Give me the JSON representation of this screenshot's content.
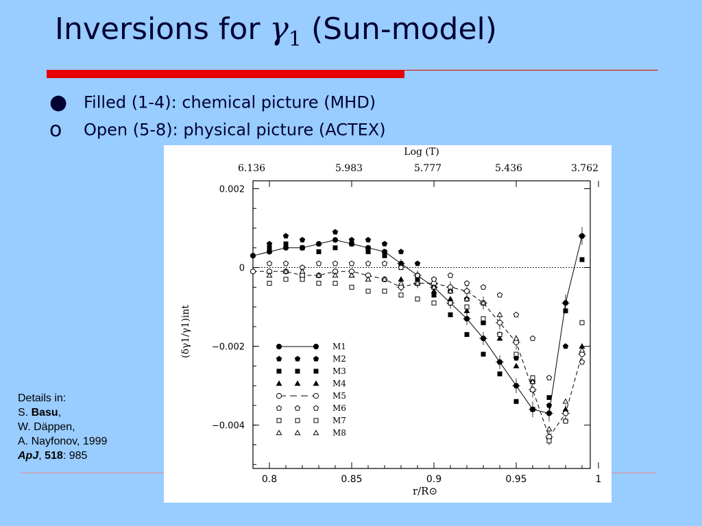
{
  "slide": {
    "title_prefix": "Inversions for ",
    "title_symbol": "γ",
    "title_subscript": "1",
    "title_suffix": " (Sun-model)",
    "bullets": [
      {
        "marker": "●",
        "text": "Filled (1-4): chemical picture (MHD)"
      },
      {
        "marker": "o",
        "text": "Open (5-8): physical picture (ACTEX)"
      }
    ],
    "details": {
      "heading": "Details in:",
      "author1_initial": "S. ",
      "author1_name": "Basu",
      "author1_sep": ",",
      "author2": "W. Däppen,",
      "author3": "A. Nayfonov, 1999",
      "journal": "ApJ",
      "journal_sep": ", ",
      "volume": "518",
      "page": ": 985"
    },
    "colors": {
      "background": "#99ccff",
      "title": "#000033",
      "accent_rule": "#e60000"
    }
  },
  "chart_data": {
    "type": "scatter",
    "xlabel": "r/R⊙",
    "ylabel": "(δγ1/γ1)int",
    "top_axis_label": "Log (T)",
    "top_tick_labels": [
      "6.136",
      "5.983",
      "5.777",
      "5.436",
      "3.762"
    ],
    "xlim": [
      0.79,
      0.995
    ],
    "ylim": [
      -0.0051,
      0.0022
    ],
    "x_ticks": [
      0.8,
      0.85,
      0.9,
      0.95,
      1.0
    ],
    "x_tick_labels": [
      "0.8",
      "0.85",
      "0.9",
      "0.95",
      "1"
    ],
    "y_ticks": [
      0.002,
      0,
      -0.002,
      -0.004
    ],
    "y_tick_labels": [
      "0.002",
      "0",
      "−0.002",
      "−0.004"
    ],
    "zero_line": true,
    "legend_position": "lower-left inside",
    "series": [
      {
        "name": "M1",
        "marker": "filled-circle",
        "line": "solid",
        "x": [
          0.79,
          0.8,
          0.81,
          0.82,
          0.83,
          0.84,
          0.85,
          0.86,
          0.87,
          0.88,
          0.89,
          0.9,
          0.91,
          0.92,
          0.93,
          0.94,
          0.95,
          0.96,
          0.97,
          0.98,
          0.99
        ],
        "y": [
          0.0003,
          0.0004,
          0.0005,
          0.0005,
          0.0006,
          0.0007,
          0.0006,
          0.0005,
          0.0004,
          0.0001,
          -0.0002,
          -0.0005,
          -0.0009,
          -0.0013,
          -0.0018,
          -0.0024,
          -0.003,
          -0.0036,
          -0.0037,
          -0.0009,
          0.0008
        ]
      },
      {
        "name": "M2",
        "marker": "filled-pentagon",
        "line": "none",
        "x": [
          0.8,
          0.81,
          0.82,
          0.83,
          0.84,
          0.85,
          0.86,
          0.87,
          0.88,
          0.89,
          0.9,
          0.91,
          0.92,
          0.93,
          0.94,
          0.95,
          0.96,
          0.97,
          0.98,
          0.99
        ],
        "y": [
          0.0006,
          0.0008,
          0.0007,
          0.0006,
          0.0009,
          0.0007,
          0.0007,
          0.0006,
          0.0004,
          0.0001,
          -0.0003,
          -0.0006,
          -0.0008,
          -0.0014,
          -0.0017,
          -0.0023,
          -0.0029,
          -0.0035,
          -0.002,
          0.0008
        ]
      },
      {
        "name": "M3",
        "marker": "filled-square",
        "line": "none",
        "x": [
          0.8,
          0.81,
          0.82,
          0.83,
          0.84,
          0.85,
          0.86,
          0.87,
          0.88,
          0.89,
          0.9,
          0.91,
          0.92,
          0.93,
          0.94,
          0.95,
          0.96,
          0.97,
          0.98,
          0.99
        ],
        "y": [
          0.0005,
          0.0006,
          0.0005,
          0.0004,
          0.0005,
          0.0006,
          0.0004,
          0.0003,
          0.0,
          -0.0003,
          -0.0007,
          -0.0012,
          -0.0017,
          -0.0022,
          -0.0027,
          -0.0034,
          -0.0036,
          -0.0033,
          -0.0011,
          0.0002
        ]
      },
      {
        "name": "M4",
        "marker": "filled-triangle",
        "line": "none",
        "x": [
          0.8,
          0.81,
          0.82,
          0.83,
          0.84,
          0.85,
          0.86,
          0.87,
          0.88,
          0.89,
          0.9,
          0.91,
          0.92,
          0.93,
          0.94,
          0.95,
          0.96,
          0.97,
          0.98,
          0.99
        ],
        "y": [
          -0.0001,
          -0.0001,
          -0.0002,
          -0.0002,
          -0.0001,
          -0.0002,
          -0.0003,
          -0.0003,
          -0.0003,
          -0.0004,
          -0.0006,
          -0.0008,
          -0.0011,
          -0.0014,
          -0.0018,
          -0.0025,
          -0.0031,
          -0.0043,
          -0.0036,
          -0.002
        ]
      },
      {
        "name": "M5",
        "marker": "open-circle",
        "line": "dashed",
        "x": [
          0.79,
          0.8,
          0.81,
          0.82,
          0.83,
          0.84,
          0.85,
          0.86,
          0.87,
          0.88,
          0.89,
          0.9,
          0.91,
          0.92,
          0.93,
          0.94,
          0.95,
          0.96,
          0.97,
          0.98,
          0.99
        ],
        "y": [
          -0.0001,
          -0.0001,
          -0.0001,
          -0.0002,
          -0.0002,
          -0.0001,
          -0.0001,
          -0.0002,
          -0.0003,
          -0.0005,
          -0.0004,
          -0.0004,
          -0.0005,
          -0.0006,
          -0.0009,
          -0.0014,
          -0.0019,
          -0.0031,
          -0.0043,
          -0.0037,
          -0.0022
        ]
      },
      {
        "name": "M6",
        "marker": "open-pentagon",
        "line": "none",
        "x": [
          0.8,
          0.81,
          0.82,
          0.83,
          0.84,
          0.85,
          0.86,
          0.87,
          0.88,
          0.89,
          0.9,
          0.91,
          0.92,
          0.93,
          0.94,
          0.95,
          0.96,
          0.97,
          0.98,
          0.99
        ],
        "y": [
          0.0001,
          0.0001,
          0.0,
          0.0001,
          0.0001,
          0.0001,
          0.0001,
          0.0001,
          0.0,
          -0.0002,
          -0.0003,
          -0.0002,
          -0.0004,
          -0.0005,
          -0.0007,
          -0.0012,
          -0.0018,
          -0.0028,
          -0.0039,
          -0.0024
        ]
      },
      {
        "name": "M7",
        "marker": "open-square",
        "line": "none",
        "x": [
          0.8,
          0.81,
          0.82,
          0.83,
          0.84,
          0.85,
          0.86,
          0.87,
          0.88,
          0.89,
          0.9,
          0.91,
          0.92,
          0.93,
          0.94,
          0.95,
          0.96,
          0.97,
          0.98,
          0.99
        ],
        "y": [
          -0.0004,
          -0.0003,
          -0.0003,
          -0.0004,
          -0.0004,
          -0.0005,
          -0.0006,
          -0.0006,
          -0.0007,
          -0.0008,
          -0.0009,
          -0.0009,
          -0.001,
          -0.0013,
          -0.0017,
          -0.0022,
          -0.0028,
          -0.0044,
          -0.0039,
          -0.0014
        ]
      },
      {
        "name": "M8",
        "marker": "open-triangle",
        "line": "none",
        "x": [
          0.8,
          0.81,
          0.82,
          0.83,
          0.84,
          0.85,
          0.86,
          0.87,
          0.88,
          0.89,
          0.9,
          0.91,
          0.92,
          0.93,
          0.94,
          0.95,
          0.96,
          0.97,
          0.98,
          0.99
        ],
        "y": [
          -0.0002,
          -0.0001,
          -0.0001,
          -0.0002,
          -0.0002,
          -0.0002,
          -0.0003,
          -0.0003,
          -0.0004,
          -0.0004,
          -0.0005,
          -0.0006,
          -0.0008,
          -0.0009,
          -0.0012,
          -0.0018,
          -0.0029,
          -0.0041,
          -0.0034,
          -0.0021
        ]
      }
    ]
  }
}
